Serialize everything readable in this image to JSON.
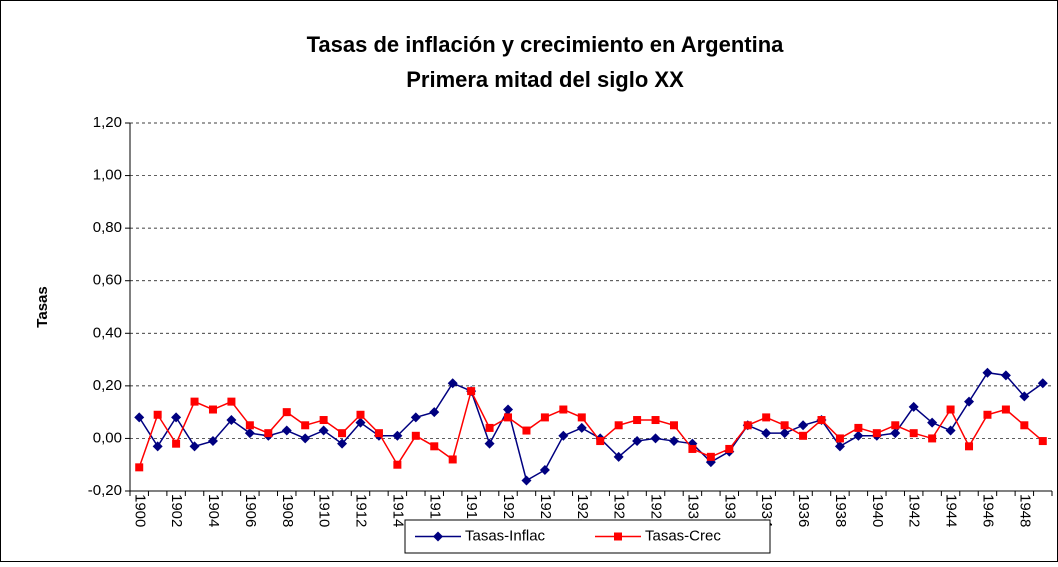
{
  "chart_data": {
    "type": "line",
    "title": "Tasas de inflación y crecimiento en Argentina",
    "subtitle": "Primera mitad del siglo XX",
    "y_label": "Tasas",
    "categories": [
      "1900",
      null,
      "1902",
      null,
      "1904",
      null,
      "1906",
      null,
      "1908",
      null,
      "1910",
      null,
      "1912",
      null,
      "1914",
      null,
      "1916",
      null,
      "1918",
      null,
      "1920",
      null,
      "1922",
      null,
      "1924",
      null,
      "1926",
      null,
      "1928",
      null,
      "1930",
      null,
      "1932",
      null,
      "1934",
      null,
      "1936",
      null,
      "1938",
      null,
      "1940",
      null,
      "1942",
      null,
      "1944",
      null,
      "1946",
      null,
      "1948",
      null
    ],
    "series": [
      {
        "name": "Tasas-Inflac",
        "color": "#000080",
        "marker": "diamond",
        "values": [
          0.08,
          -0.03,
          0.08,
          -0.03,
          -0.01,
          0.07,
          0.02,
          0.01,
          0.03,
          0.0,
          0.03,
          -0.02,
          0.06,
          0.01,
          0.01,
          0.08,
          0.1,
          0.21,
          0.18,
          -0.02,
          0.11,
          -0.16,
          -0.12,
          0.01,
          0.04,
          0.0,
          -0.07,
          -0.01,
          0.0,
          -0.01,
          -0.02,
          -0.09,
          -0.05,
          0.05,
          0.02,
          0.02,
          0.05,
          0.07,
          -0.03,
          0.01,
          0.01,
          0.02,
          0.12,
          0.06,
          0.03,
          0.14,
          0.25,
          0.24,
          0.16,
          0.21
        ]
      },
      {
        "name": "Tasas-Crec",
        "color": "#ff0000",
        "marker": "square",
        "values": [
          -0.11,
          0.09,
          -0.02,
          0.14,
          0.11,
          0.14,
          0.05,
          0.02,
          0.1,
          0.05,
          0.07,
          0.02,
          0.09,
          0.02,
          -0.1,
          0.01,
          -0.03,
          -0.08,
          0.18,
          0.04,
          0.08,
          0.03,
          0.08,
          0.11,
          0.08,
          -0.01,
          0.05,
          0.07,
          0.07,
          0.05,
          -0.04,
          -0.07,
          -0.04,
          0.05,
          0.08,
          0.05,
          0.01,
          0.07,
          0.0,
          0.04,
          0.02,
          0.05,
          0.02,
          0.0,
          0.11,
          -0.03,
          0.09,
          0.11,
          0.05,
          -0.01
        ]
      }
    ],
    "ylim": [
      -0.2,
      1.2
    ],
    "yticks": [
      {
        "value": -0.2,
        "label": "-0,20"
      },
      {
        "value": 0,
        "label": "0,00"
      },
      {
        "value": 0.2,
        "label": "0,20"
      },
      {
        "value": 0.4,
        "label": "0,40"
      },
      {
        "value": 0.6,
        "label": "0,60"
      },
      {
        "value": 0.8,
        "label": "0,80"
      },
      {
        "value": 1.0,
        "label": "1,00"
      },
      {
        "value": 1.2,
        "label": "1,20"
      }
    ],
    "grid": true,
    "legend": "bottom"
  }
}
